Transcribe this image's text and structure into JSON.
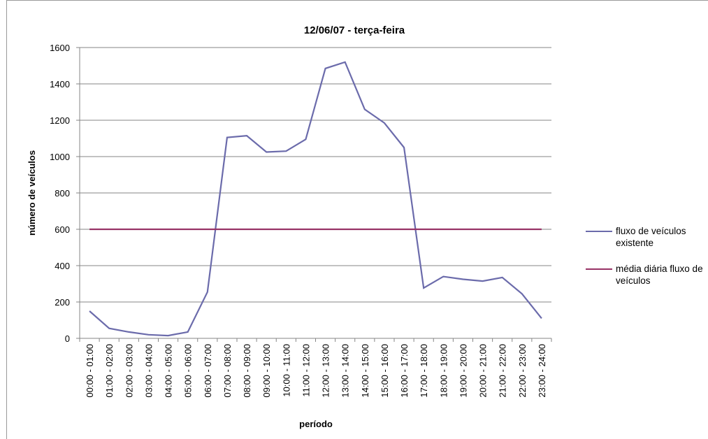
{
  "chart_data": {
    "type": "line",
    "title": "12/06/07 - terça-feira",
    "x_label": "período",
    "y_label": "número de veículos",
    "categories": [
      "00:00 - 01:00",
      "01:00 - 02:00",
      "02:00 - 03:00",
      "03:00 - 04:00",
      "04:00 - 05:00",
      "05:00 - 06:00",
      "06:00 - 07:00",
      "07:00 - 08:00",
      "08:00 - 09:00",
      "09:00 - 10:00",
      "10:00 - 11:00",
      "11:00 - 12:00",
      "12:00 - 13:00",
      "13:00 - 14:00",
      "14:00 - 15:00",
      "15:00 - 16:00",
      "16:00 - 17:00",
      "17:00 - 18:00",
      "18:00 - 19:00",
      "19:00 - 20:00",
      "20:00 - 21:00",
      "21:00 - 22:00",
      "22:00 - 23:00",
      "23:00 - 24:00"
    ],
    "series": [
      {
        "name": "fluxo de veículos existente",
        "color": "#6b6bab",
        "values": [
          150,
          55,
          35,
          20,
          15,
          35,
          255,
          1105,
          1115,
          1025,
          1030,
          1095,
          1485,
          1520,
          1260,
          1185,
          1050,
          277,
          340,
          325,
          315,
          335,
          245,
          110
        ]
      },
      {
        "name": "média diária fluxo de veículos",
        "color": "#983366",
        "values": [
          600,
          600,
          600,
          600,
          600,
          600,
          600,
          600,
          600,
          600,
          600,
          600,
          600,
          600,
          600,
          600,
          600,
          600,
          600,
          600,
          600,
          600,
          600,
          600
        ]
      }
    ],
    "ylim": [
      0,
      1600
    ],
    "yticks": [
      0,
      200,
      400,
      600,
      800,
      1000,
      1200,
      1400,
      1600
    ],
    "grid": true,
    "legend": "right"
  }
}
